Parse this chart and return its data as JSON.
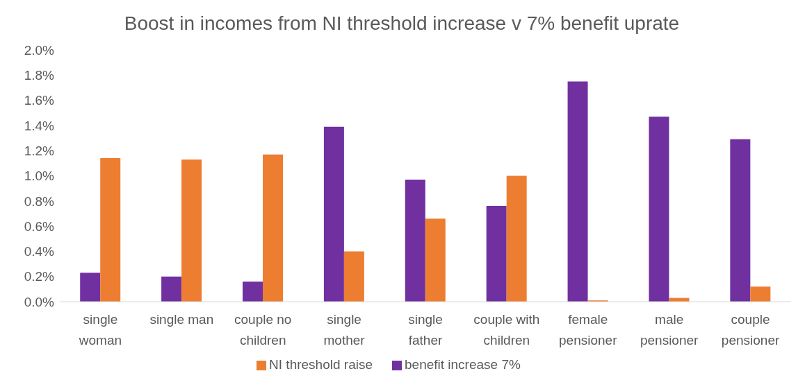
{
  "chart_data": {
    "type": "bar",
    "title": "Boost in incomes from NI threshold increase v 7% benefit uprate",
    "categories": [
      "single woman",
      "single man",
      "couple no children",
      "single mother",
      "single father",
      "couple with children",
      "female pensioner",
      "male pensioner",
      "couple pensioner"
    ],
    "series": [
      {
        "name": "benefit increase 7%",
        "color": "#7030a0",
        "values": [
          0.23,
          0.2,
          0.16,
          1.39,
          0.97,
          0.76,
          1.75,
          1.47,
          1.29
        ]
      },
      {
        "name": "NI threshold raise",
        "color": "#ed7d31",
        "values": [
          1.14,
          1.13,
          1.17,
          0.4,
          0.66,
          1.0,
          0.01,
          0.03,
          0.12
        ]
      }
    ],
    "ylim": [
      0,
      2
    ],
    "yticks": [
      {
        "value": 0,
        "label": "0.0%"
      },
      {
        "value": 0.2,
        "label": "0.2%"
      },
      {
        "value": 0.4,
        "label": "0.4%"
      },
      {
        "value": 0.6,
        "label": "0.6%"
      },
      {
        "value": 0.8,
        "label": "0.8%"
      },
      {
        "value": 1.0,
        "label": "1.0%"
      },
      {
        "value": 1.2,
        "label": "1.2%"
      },
      {
        "value": 1.4,
        "label": "1.4%"
      },
      {
        "value": 1.6,
        "label": "1.6%"
      },
      {
        "value": 1.8,
        "label": "1.8%"
      },
      {
        "value": 2.0,
        "label": "2.0%"
      }
    ],
    "grid": false,
    "legend": "bottom"
  }
}
